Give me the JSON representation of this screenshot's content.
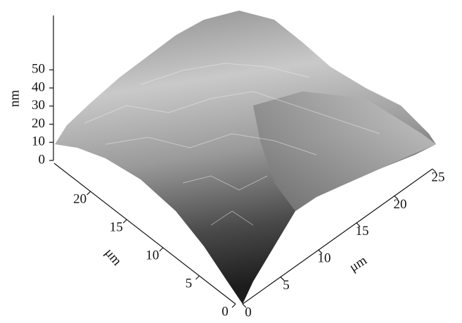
{
  "chart_data": {
    "type": "surface3d",
    "xlabel": "μm",
    "ylabel": "μm",
    "zlabel": "nm",
    "xlim": [
      0,
      25
    ],
    "xticks": [
      0,
      5,
      10,
      15,
      20,
      25
    ],
    "ylim": [
      0,
      25
    ],
    "yticks": [
      0,
      5,
      10,
      15,
      20
    ],
    "zlim": [
      0,
      80
    ],
    "zticks": [
      0,
      10,
      20,
      30,
      40,
      50
    ]
  }
}
